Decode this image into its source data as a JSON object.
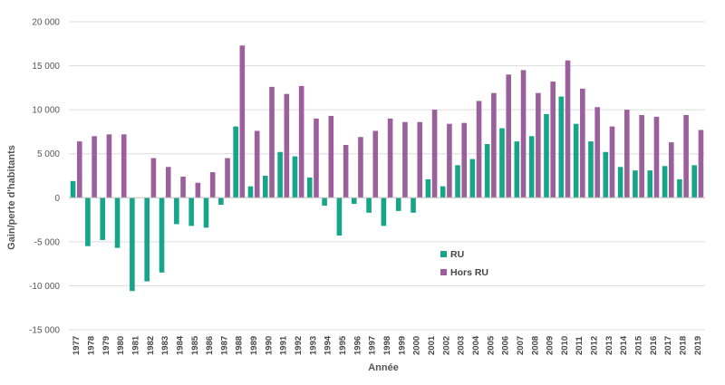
{
  "chart_data": {
    "type": "bar",
    "xlabel": "Année",
    "ylabel": "Gain/perte d'habitants",
    "ylim": [
      -15000,
      20000
    ],
    "yticks": [
      20000,
      15000,
      10000,
      5000,
      0,
      -5000,
      -10000,
      -15000
    ],
    "ytick_labels": [
      "20 000",
      "15 000",
      "10 000",
      "5 000",
      "0",
      "-5 000",
      "-10 000",
      "-15 000"
    ],
    "grid": "horizontal",
    "legend_position": "center-right",
    "categories": [
      "1977",
      "1978",
      "1979",
      "1980",
      "1981",
      "1982",
      "1983",
      "1984",
      "1985",
      "1986",
      "1987",
      "1988",
      "1989",
      "1990",
      "1991",
      "1992",
      "1993",
      "1994",
      "1995",
      "1996",
      "1997",
      "1998",
      "1999",
      "2000",
      "2001",
      "2002",
      "2003",
      "2004",
      "2005",
      "2006",
      "2007",
      "2008",
      "2009",
      "2010",
      "2011",
      "2012",
      "2013",
      "2014",
      "2015",
      "2016",
      "2017",
      "2018",
      "2019"
    ],
    "series": [
      {
        "name": "RU",
        "color": "#17a589",
        "values": [
          1900,
          -5500,
          -4800,
          -5700,
          -10600,
          -9500,
          -8500,
          -3000,
          -3200,
          -3400,
          -800,
          8100,
          1300,
          2500,
          5200,
          4700,
          2300,
          -900,
          -4300,
          -700,
          -1700,
          -3200,
          -1500,
          -1700,
          2100,
          1300,
          3700,
          4400,
          6100,
          7900,
          6400,
          7000,
          9500,
          11500,
          8400,
          6400,
          5200,
          3500,
          3100,
          3100,
          3600,
          2100,
          3700
        ]
      },
      {
        "name": "Hors RU",
        "color": "#9b5f9b",
        "values": [
          6400,
          7000,
          7200,
          7200,
          0,
          4500,
          3500,
          2400,
          1700,
          2900,
          4500,
          17300,
          7600,
          12600,
          11800,
          12700,
          9000,
          9300,
          6000,
          6900,
          7600,
          9000,
          8600,
          8600,
          10000,
          8400,
          8500,
          11000,
          11900,
          14000,
          14500,
          11900,
          13200,
          15600,
          12400,
          10300,
          8100,
          10000,
          9400,
          9200,
          6300,
          9400,
          7700
        ]
      }
    ]
  }
}
